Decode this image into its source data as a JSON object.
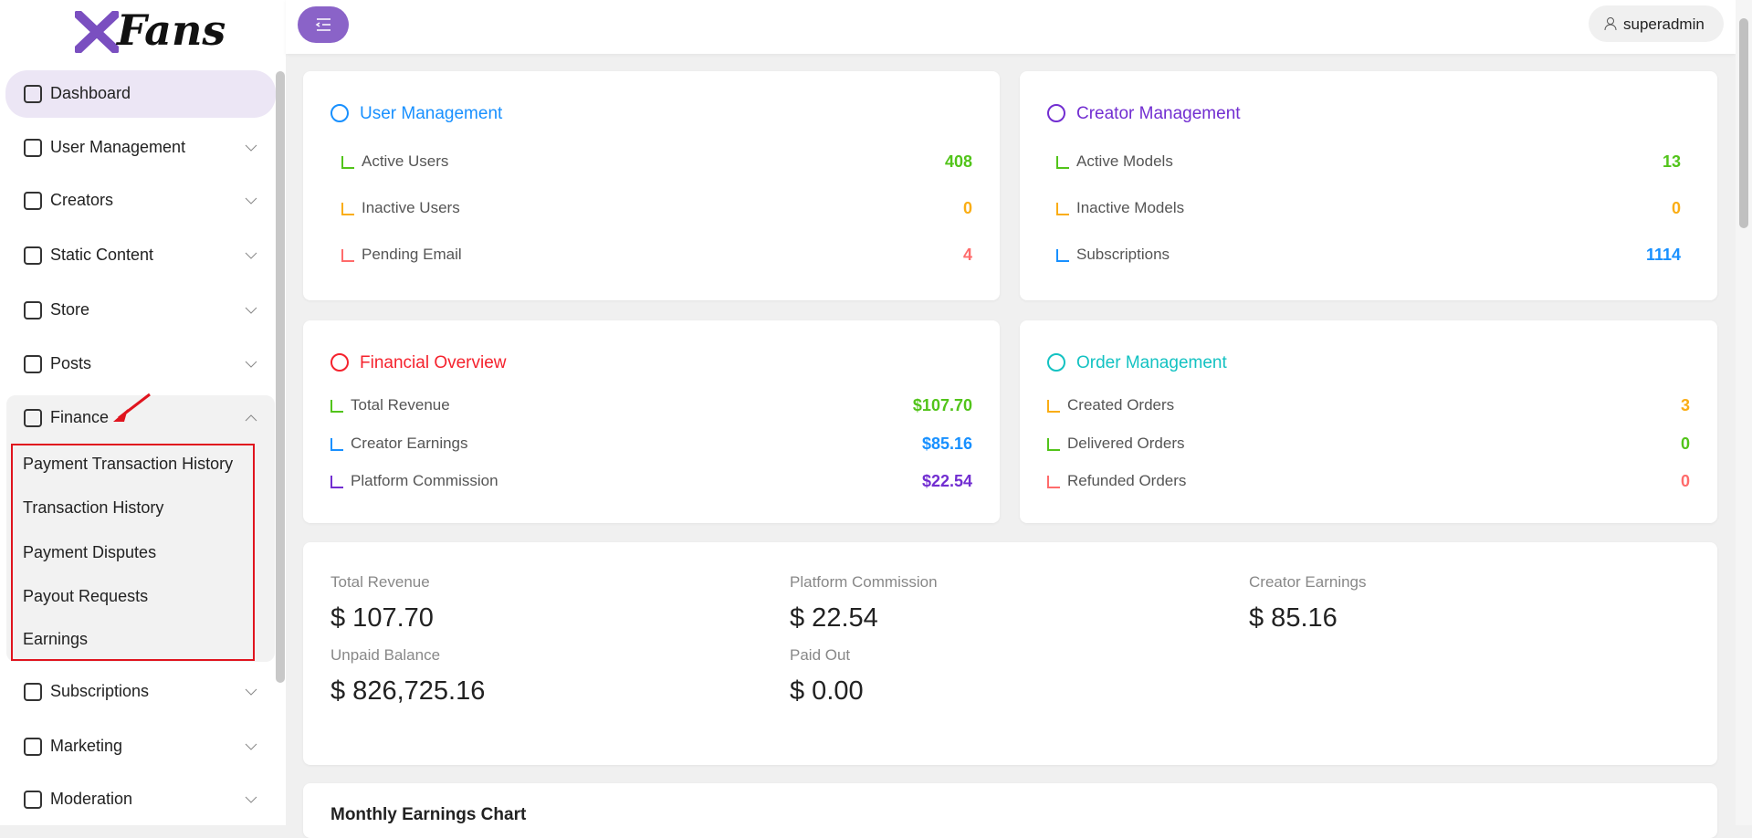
{
  "sidebar": {
    "logo": "Fans",
    "menu": [
      "Dashboard",
      "User Management",
      "Creators",
      "Static Content",
      "Store",
      "Posts",
      "Finance"
    ],
    "finance_submenu": [
      "Payment Transaction History",
      "Transaction History",
      "Payment Disputes",
      "Payout Requests",
      "Earnings"
    ],
    "menu_after": [
      "Subscriptions",
      "Marketing",
      "Moderation"
    ]
  },
  "header": {
    "user": "superadmin"
  },
  "cards": [
    {
      "title": "User Management",
      "rows": [
        {
          "label": "Active Users",
          "value": "408"
        },
        {
          "label": "Inactive Users",
          "value": "0"
        },
        {
          "label": "Pending Email",
          "value": "4"
        }
      ]
    },
    {
      "title": "Creator Management",
      "rows": [
        {
          "label": "Active Models",
          "value": "13"
        },
        {
          "label": "Inactive Models",
          "value": "0"
        },
        {
          "label": "Subscriptions",
          "value": "1114"
        }
      ]
    },
    {
      "title": "Financial Overview",
      "rows": [
        {
          "label": "Total Revenue",
          "value": "$107.70"
        },
        {
          "label": "Creator Earnings",
          "value": "$85.16"
        },
        {
          "label": "Platform Commission",
          "value": "$22.54"
        }
      ]
    },
    {
      "title": "Order Management",
      "rows": [
        {
          "label": "Created Orders",
          "value": "3"
        },
        {
          "label": "Delivered Orders",
          "value": "0"
        },
        {
          "label": "Refunded Orders",
          "value": "0"
        }
      ]
    }
  ],
  "summary": [
    {
      "label": "Total Revenue",
      "value": "$ 107.70"
    },
    {
      "label": "Platform Commission",
      "value": "$ 22.54"
    },
    {
      "label": "Creator Earnings",
      "value": "$ 85.16"
    },
    {
      "label": "Unpaid Balance",
      "value": "$ 826,725.16"
    },
    {
      "label": "Paid Out",
      "value": "$ 0.00"
    }
  ],
  "chart_title": "Monthly Earnings Chart"
}
